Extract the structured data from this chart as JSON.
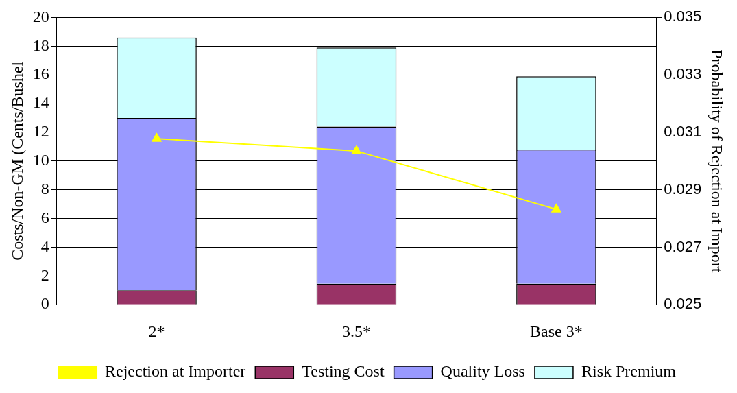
{
  "chart_data": {
    "type": "bar",
    "stacked": true,
    "categories": [
      "2*",
      "3.5*",
      "Base 3*"
    ],
    "ylabel": "Costs/Non-GM (Cents/Bushel",
    "y2label": "Probability of Rejection at Import",
    "ylim": [
      0,
      20
    ],
    "yticks": [
      0,
      2,
      4,
      6,
      8,
      10,
      12,
      14,
      16,
      18,
      20
    ],
    "y2lim": [
      0.025,
      0.035
    ],
    "y2ticks": [
      0.025,
      0.027,
      0.029,
      0.031,
      0.033,
      0.035
    ],
    "grid": "y",
    "legend": "bottom",
    "series": [
      {
        "name": "Testing Cost",
        "color": "#993366",
        "values": [
          1.0,
          1.45,
          1.45
        ]
      },
      {
        "name": "Quality Loss",
        "color": "#9999ff",
        "values": [
          12.0,
          10.95,
          9.35
        ]
      },
      {
        "name": "Risk Premium",
        "color": "#ccffff",
        "values": [
          5.6,
          5.5,
          5.1
        ]
      },
      {
        "name": "Rejection at Importer",
        "type": "line",
        "axis": "y2",
        "color": "#ffff00",
        "marker": "triangle",
        "values": [
          0.03078,
          0.03035,
          0.02832
        ]
      }
    ]
  }
}
